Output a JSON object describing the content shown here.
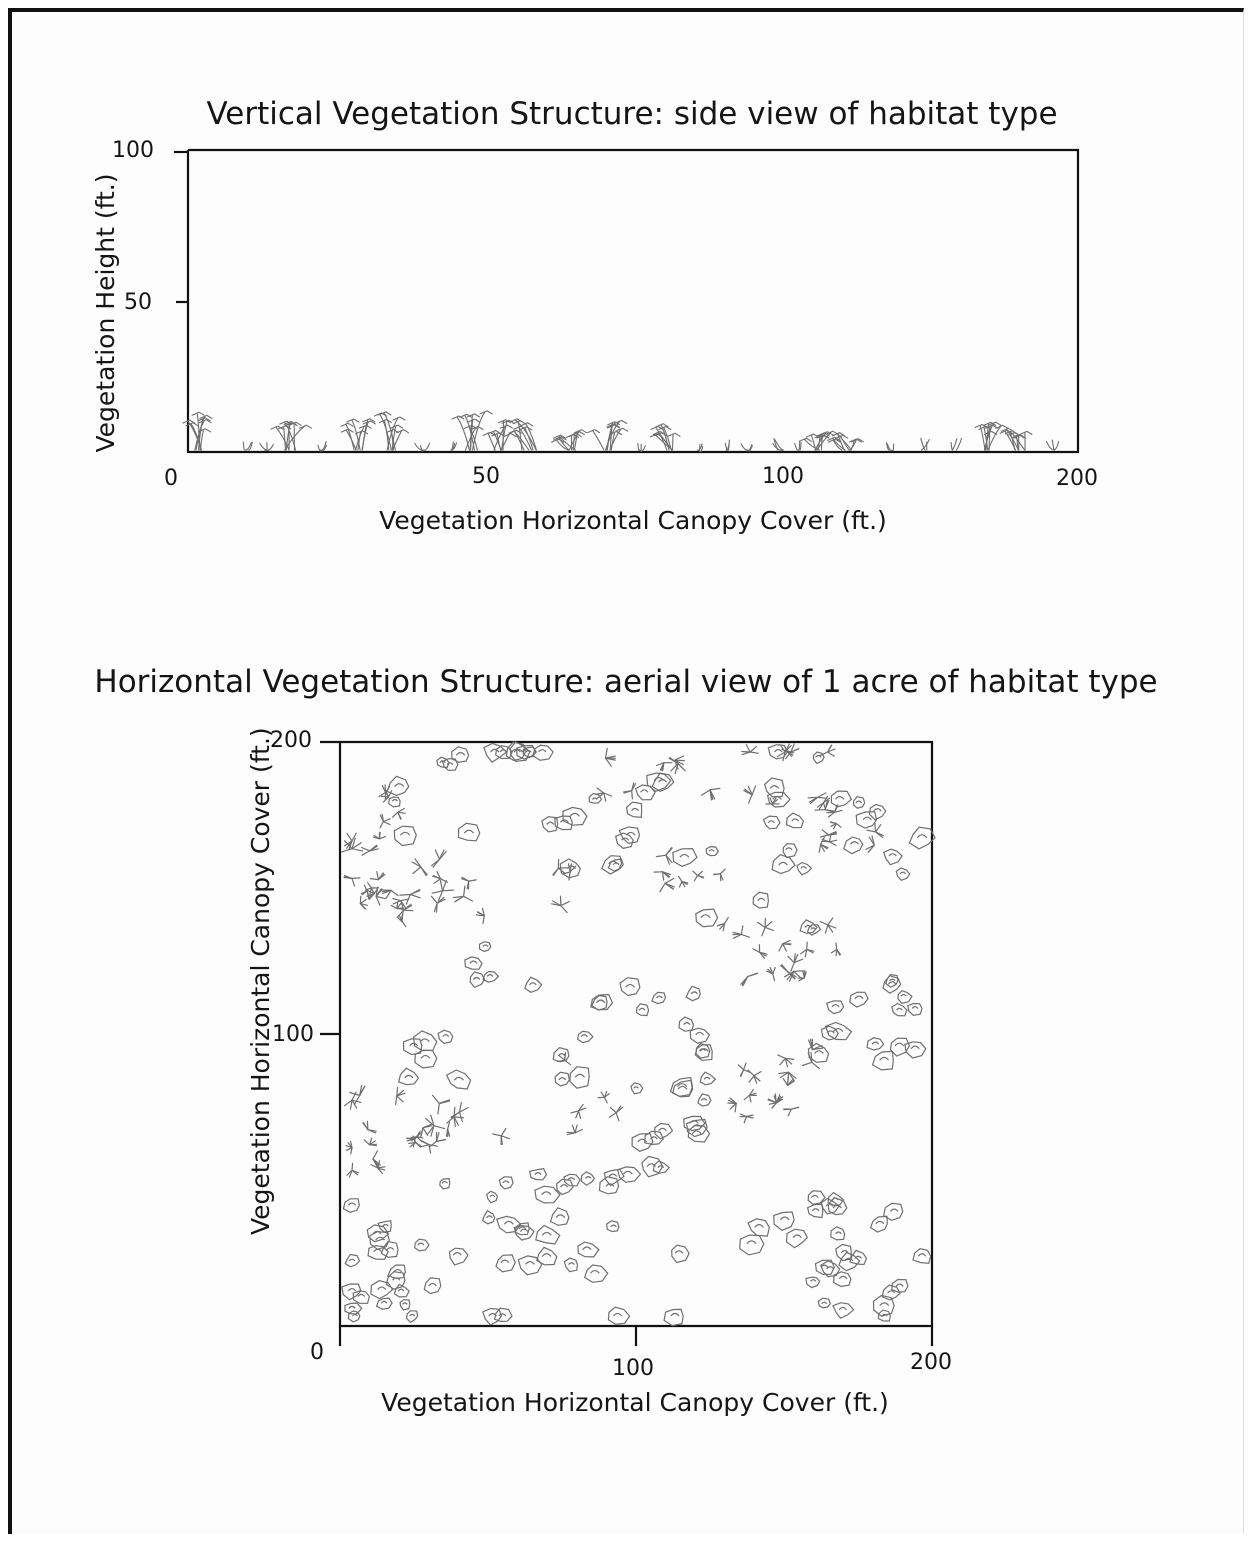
{
  "side_view": {
    "title": "Vertical Vegetation Structure: side view of habitat type",
    "ylabel": "Vegetation Height (ft.)",
    "xlabel": "Vegetation Horizontal Canopy Cover (ft.)",
    "y_ticks": [
      "100",
      "50"
    ],
    "x_ticks": [
      "0",
      "50",
      "100",
      "200"
    ]
  },
  "aerial_view": {
    "title": "Horizontal Vegetation Structure: aerial view of 1 acre of habitat type",
    "ylabel": "Vegetation Horizontal Canopy Cover (ft.)",
    "xlabel": "Vegetation Horizontal Canopy Cover (ft.)",
    "y_ticks": [
      "200",
      "100",
      "0"
    ],
    "x_ticks": [
      "100",
      "200"
    ]
  },
  "colors": {
    "axis": "#111111",
    "sketch": "#6f6f6f"
  },
  "icons": [
    "grass-tuft-icon",
    "shrub-icon",
    "plant-blob-icon"
  ]
}
